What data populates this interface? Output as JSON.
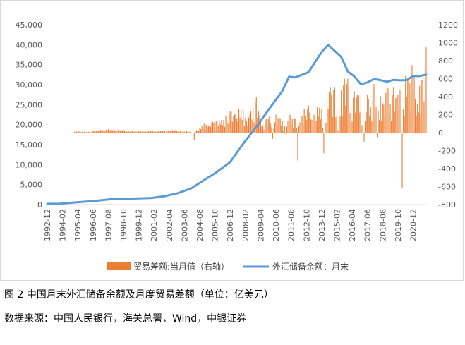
{
  "figure": {
    "caption": "图 2  中国月末外汇储备余额及月度贸易差额（单位：亿美元）",
    "source": "数据来源：中国人民银行，海关总署，Wind，中银证券"
  },
  "colors": {
    "bars": "#ed7d31",
    "line": "#5b9bd5",
    "axis_text": "#595959",
    "axis_line": "#d9d9d9"
  },
  "chart_data": {
    "type": "bar+line",
    "title": "",
    "legend_position": "bottom",
    "x_tick_labels": [
      "1992-12",
      "1994-02",
      "1995-04",
      "1996-06",
      "1997-08",
      "1998-10",
      "1999-12",
      "2001-02",
      "2002-04",
      "2003-06",
      "2004-08",
      "2005-10",
      "2006-12",
      "2008-02",
      "2009-04",
      "2010-06",
      "2011-08",
      "2012-10",
      "2013-12",
      "2015-02",
      "2016-04",
      "2017-06",
      "2018-08",
      "2019-10",
      "2020-12"
    ],
    "y_left": {
      "min": 0,
      "max": 45000,
      "step": 5000,
      "tick_labels": [
        "0",
        "5,000",
        "10,000",
        "15,000",
        "20,000",
        "25,000",
        "30,000",
        "35,000",
        "40,000",
        "45,000"
      ]
    },
    "y_right": {
      "min": -800,
      "max": 1200,
      "step": 200,
      "tick_labels": [
        "-800",
        "-600",
        "-400",
        "-200",
        "0",
        "200",
        "400",
        "600",
        "800",
        "1000",
        "1200"
      ]
    },
    "series": [
      {
        "name": "贸易差额:当月值（右轴）",
        "type": "bar",
        "axis": "right",
        "points": [
          [
            "1995-01",
            10
          ],
          [
            "1995-06",
            15
          ],
          [
            "1996-01",
            -5
          ],
          [
            "1996-06",
            15
          ],
          [
            "1997-01",
            30
          ],
          [
            "1997-08",
            40
          ],
          [
            "1998-03",
            35
          ],
          [
            "1998-10",
            30
          ],
          [
            "1999-06",
            15
          ],
          [
            "1999-12",
            15
          ],
          [
            "2000-06",
            20
          ],
          [
            "2001-01",
            20
          ],
          [
            "2001-08",
            20
          ],
          [
            "2002-03",
            25
          ],
          [
            "2002-10",
            30
          ],
          [
            "2003-03",
            -10
          ],
          [
            "2003-08",
            20
          ],
          [
            "2003-12",
            -30
          ],
          [
            "2004-03",
            -80
          ],
          [
            "2004-08",
            50
          ],
          [
            "2004-12",
            100
          ],
          [
            "2005-04",
            80
          ],
          [
            "2005-08",
            120
          ],
          [
            "2005-12",
            140
          ],
          [
            "2006-04",
            140
          ],
          [
            "2006-08",
            190
          ],
          [
            "2006-12",
            240
          ],
          [
            "2007-04",
            200
          ],
          [
            "2007-08",
            260
          ],
          [
            "2007-12",
            260
          ],
          [
            "2008-03",
            130
          ],
          [
            "2008-06",
            210
          ],
          [
            "2008-09",
            290
          ],
          [
            "2008-12",
            400
          ],
          [
            "2009-03",
            190
          ],
          [
            "2009-06",
            80
          ],
          [
            "2009-09",
            150
          ],
          [
            "2009-12",
            180
          ],
          [
            "2010-03",
            -70
          ],
          [
            "2010-06",
            200
          ],
          [
            "2010-09",
            170
          ],
          [
            "2010-12",
            130
          ],
          [
            "2011-03",
            -20
          ],
          [
            "2011-06",
            220
          ],
          [
            "2011-09",
            150
          ],
          [
            "2011-12",
            160
          ],
          [
            "2012-02",
            -310
          ],
          [
            "2012-05",
            190
          ],
          [
            "2012-08",
            260
          ],
          [
            "2012-12",
            300
          ],
          [
            "2013-02",
            150
          ],
          [
            "2013-05",
            200
          ],
          [
            "2013-08",
            290
          ],
          [
            "2013-12",
            260
          ],
          [
            "2014-02",
            -230
          ],
          [
            "2014-05",
            350
          ],
          [
            "2014-08",
            500
          ],
          [
            "2014-12",
            500
          ],
          [
            "2015-03",
            30
          ],
          [
            "2015-06",
            470
          ],
          [
            "2015-09",
            600
          ],
          [
            "2015-12",
            600
          ],
          [
            "2016-03",
            300
          ],
          [
            "2016-06",
            460
          ],
          [
            "2016-09",
            420
          ],
          [
            "2016-12",
            400
          ],
          [
            "2017-03",
            -100
          ],
          [
            "2017-06",
            420
          ],
          [
            "2017-09",
            280
          ],
          [
            "2017-12",
            540
          ],
          [
            "2018-03",
            -50
          ],
          [
            "2018-06",
            410
          ],
          [
            "2018-09",
            310
          ],
          [
            "2018-12",
            580
          ],
          [
            "2019-03",
            320
          ],
          [
            "2019-06",
            500
          ],
          [
            "2019-09",
            390
          ],
          [
            "2019-12",
            470
          ],
          [
            "2020-02",
            -620
          ],
          [
            "2020-05",
            630
          ],
          [
            "2020-08",
            590
          ],
          [
            "2020-11",
            750
          ],
          [
            "2021-01",
            630
          ],
          [
            "2021-03",
            190
          ],
          [
            "2021-06",
            520
          ],
          [
            "2021-09",
            670
          ],
          [
            "2021-11",
            720
          ],
          [
            "2021-12",
            950
          ]
        ]
      },
      {
        "name": "外汇储备余额：月末",
        "type": "line",
        "axis": "left",
        "points": [
          [
            "1992-12",
            194
          ],
          [
            "1993-12",
            212
          ],
          [
            "1994-12",
            516
          ],
          [
            "1995-12",
            736
          ],
          [
            "1996-12",
            1050
          ],
          [
            "1997-12",
            1399
          ],
          [
            "1998-12",
            1450
          ],
          [
            "1999-12",
            1547
          ],
          [
            "2000-12",
            1656
          ],
          [
            "2001-12",
            2122
          ],
          [
            "2002-12",
            2864
          ],
          [
            "2003-12",
            4033
          ],
          [
            "2004-12",
            6099
          ],
          [
            "2005-12",
            8189
          ],
          [
            "2006-12",
            10663
          ],
          [
            "2007-12",
            15282
          ],
          [
            "2008-12",
            19460
          ],
          [
            "2009-12",
            23992
          ],
          [
            "2010-12",
            28473
          ],
          [
            "2011-06",
            31975
          ],
          [
            "2011-12",
            31811
          ],
          [
            "2012-12",
            33116
          ],
          [
            "2013-12",
            38213
          ],
          [
            "2014-06",
            39932
          ],
          [
            "2014-12",
            38430
          ],
          [
            "2015-06",
            36938
          ],
          [
            "2015-12",
            33304
          ],
          [
            "2016-06",
            32052
          ],
          [
            "2016-12",
            30105
          ],
          [
            "2017-06",
            30568
          ],
          [
            "2017-12",
            31399
          ],
          [
            "2018-06",
            31121
          ],
          [
            "2018-12",
            30727
          ],
          [
            "2019-06",
            31192
          ],
          [
            "2019-12",
            31079
          ],
          [
            "2020-06",
            31123
          ],
          [
            "2020-12",
            32165
          ],
          [
            "2021-06",
            32140
          ],
          [
            "2021-12",
            32502
          ]
        ]
      }
    ]
  }
}
